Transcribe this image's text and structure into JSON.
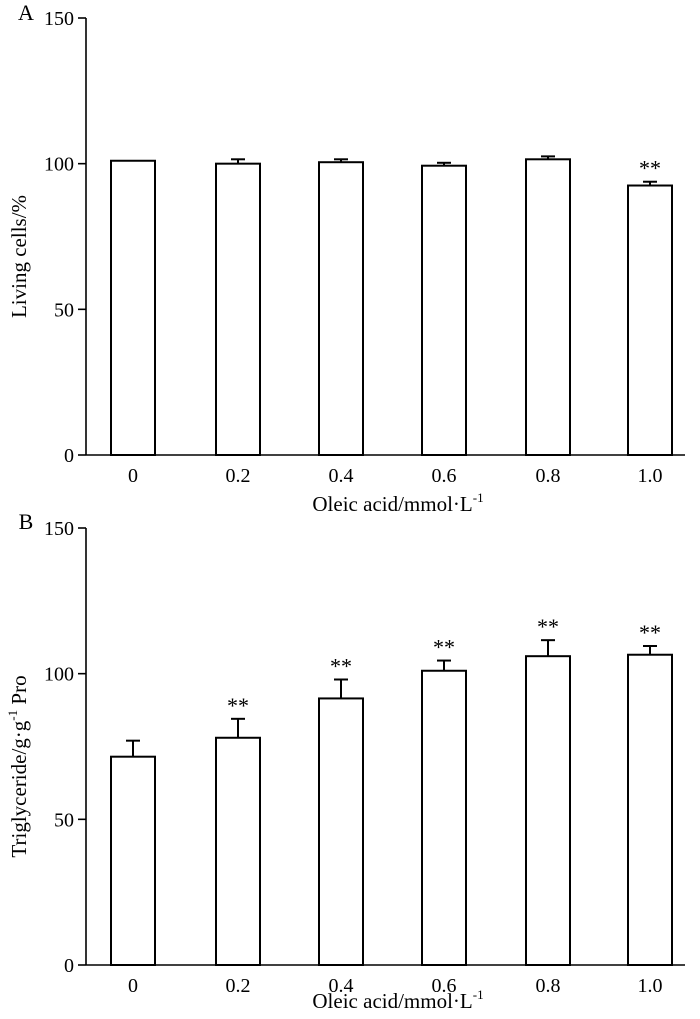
{
  "chart_data": [
    {
      "type": "bar",
      "panel_label": "A",
      "categories": [
        "0",
        "0.2",
        "0.4",
        "0.6",
        "0.8",
        "1.0"
      ],
      "values": [
        101,
        100,
        100.5,
        99.3,
        101.5,
        92.5
      ],
      "errors": [
        0,
        1.5,
        1,
        1,
        1,
        1.3
      ],
      "significance": [
        "",
        "",
        "",
        "",
        "",
        "**"
      ],
      "ylabel": "Living cells/%",
      "xlabel": "Oleic acid/mmol·L",
      "xlabel_sup": "-1",
      "ylim": [
        0,
        150
      ],
      "yticks": [
        "0",
        "50",
        "100",
        "150"
      ],
      "ytick_values": [
        0,
        50,
        100,
        150
      ]
    },
    {
      "type": "bar",
      "panel_label": "B",
      "categories": [
        "0",
        "0.2",
        "0.4",
        "0.6",
        "0.8",
        "1.0"
      ],
      "values": [
        71.5,
        78,
        91.5,
        101,
        106,
        106.5
      ],
      "errors": [
        5.5,
        6.5,
        6.5,
        3.5,
        5.5,
        3
      ],
      "significance": [
        "",
        "**",
        "**",
        "**",
        "**",
        "**"
      ],
      "ylabel": "Triglyceride/g·g",
      "ylabel_sup": "-1",
      "ylabel_suffix": " Pro",
      "xlabel": "Oleic acid/mmol·L",
      "xlabel_sup": "-1",
      "ylim": [
        0,
        150
      ],
      "yticks": [
        "0",
        "50",
        "100",
        "150"
      ],
      "ytick_values": [
        0,
        50,
        100,
        150
      ]
    }
  ]
}
